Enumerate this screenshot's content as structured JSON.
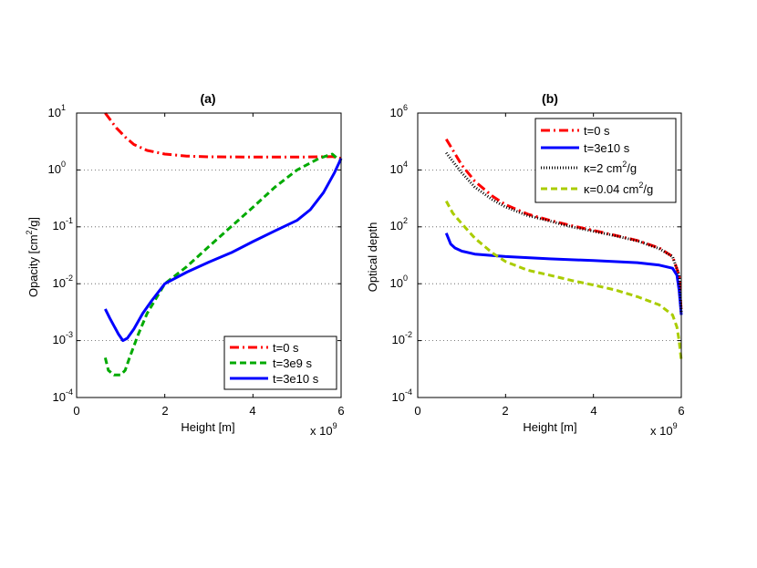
{
  "chart_data": [
    {
      "type": "line",
      "title": "(a)",
      "xlabel": "Height [m]",
      "ylabel": "Opacity [cm²/g]",
      "ylabel_main": "Opacity [cm",
      "ylabel_sup": "2",
      "ylabel_end": "/g]",
      "xlim": [
        0,
        6
      ],
      "ylim_log10": [
        -4,
        1
      ],
      "x_multiplier": {
        "base": "x 10",
        "exponent": "9"
      },
      "x_ticks": [
        "0",
        "2",
        "4",
        "6"
      ],
      "y_ticks": [
        {
          "base": "10",
          "exp": "1"
        },
        {
          "base": "10",
          "exp": "0"
        },
        {
          "base": "10",
          "exp": "-1"
        },
        {
          "base": "10",
          "exp": "-2"
        },
        {
          "base": "10",
          "exp": "-3"
        },
        {
          "base": "10",
          "exp": "-4"
        }
      ],
      "grid": "horizontal-dotted",
      "legend_position": "bottom-right",
      "series": [
        {
          "name": "t=0 s",
          "label": "t=0 s",
          "color": "#ff0000",
          "style": "dashdot",
          "x": [
            0.65,
            0.9,
            1.1,
            1.3,
            1.6,
            2.0,
            2.5,
            3.0,
            4.0,
            5.0,
            5.5,
            5.8,
            6.0
          ],
          "y": [
            10.0,
            5.5,
            3.8,
            2.8,
            2.2,
            1.9,
            1.75,
            1.7,
            1.68,
            1.68,
            1.7,
            1.72,
            1.6
          ]
        },
        {
          "name": "t=3e9 s",
          "label": "t=3e9 s",
          "color": "#00aa00",
          "style": "dashed",
          "x": [
            0.65,
            0.72,
            0.85,
            1.0,
            1.1,
            1.2,
            1.4,
            1.6,
            2.0,
            2.5,
            3.0,
            3.5,
            4.0,
            4.5,
            5.0,
            5.5,
            5.8,
            6.0
          ],
          "y": [
            0.0005,
            0.0003,
            0.00025,
            0.00025,
            0.0003,
            0.0005,
            0.0013,
            0.003,
            0.01,
            0.02,
            0.045,
            0.1,
            0.22,
            0.5,
            1.0,
            1.6,
            1.9,
            1.4
          ]
        },
        {
          "name": "t=3e10 s",
          "label": "t=3e10 s",
          "color": "#0000ff",
          "style": "solid",
          "x": [
            0.65,
            0.75,
            0.85,
            0.95,
            1.05,
            1.15,
            1.3,
            1.5,
            1.7,
            2.0,
            2.5,
            3.0,
            3.5,
            4.0,
            4.5,
            5.0,
            5.3,
            5.6,
            5.85,
            6.0
          ],
          "y": [
            0.0036,
            0.0025,
            0.0018,
            0.0013,
            0.001,
            0.0011,
            0.0016,
            0.003,
            0.005,
            0.01,
            0.016,
            0.024,
            0.035,
            0.055,
            0.085,
            0.13,
            0.2,
            0.4,
            0.9,
            1.6
          ]
        }
      ]
    },
    {
      "type": "line",
      "title": "(b)",
      "xlabel": "Height [m]",
      "ylabel": "Optical depth",
      "xlim": [
        0,
        6
      ],
      "ylim_log10": [
        -4,
        6
      ],
      "x_multiplier": {
        "base": "x 10",
        "exponent": "9"
      },
      "x_ticks": [
        "0",
        "2",
        "4",
        "6"
      ],
      "y_ticks": [
        {
          "base": "10",
          "exp": "6"
        },
        {
          "base": "10",
          "exp": "4"
        },
        {
          "base": "10",
          "exp": "2"
        },
        {
          "base": "10",
          "exp": "0"
        },
        {
          "base": "10",
          "exp": "-2"
        },
        {
          "base": "10",
          "exp": "-4"
        }
      ],
      "grid": "horizontal-dotted",
      "legend_position": "top-right",
      "series": [
        {
          "name": "t=0 s",
          "label": "t=0 s",
          "color": "#ff0000",
          "style": "dashdot",
          "x": [
            0.65,
            0.8,
            1.0,
            1.3,
            1.7,
            2.0,
            2.5,
            3.0,
            3.5,
            4.0,
            4.5,
            5.0,
            5.5,
            5.8,
            5.95,
            6.0
          ],
          "y": [
            120000,
            50000,
            15000,
            4000,
            1200,
            600,
            280,
            170,
            110,
            75,
            50,
            33,
            18,
            9,
            2,
            0.1
          ]
        },
        {
          "name": "t=3e10 s",
          "label": "t=3e10 s",
          "color": "#0000ff",
          "style": "solid",
          "x": [
            0.65,
            0.75,
            0.85,
            1.0,
            1.3,
            2.0,
            3.0,
            4.0,
            5.0,
            5.5,
            5.8,
            5.9,
            5.95,
            6.0
          ],
          "y": [
            60,
            25,
            18,
            14,
            11,
            9,
            7.5,
            6.5,
            5.5,
            4.5,
            3.5,
            2,
            0.6,
            0.08
          ]
        },
        {
          "name": "κ=2 cm²/g",
          "label_main": "κ=2 cm",
          "label_sup": "2",
          "label_end": "/g",
          "color": "#000000",
          "style": "dotted",
          "x": [
            0.65,
            0.8,
            1.0,
            1.3,
            1.7,
            2.0,
            2.5,
            3.0,
            3.5,
            4.0,
            4.5,
            5.0,
            5.5,
            5.8,
            5.95,
            6.0
          ],
          "y": [
            40000,
            20000,
            8000,
            2500,
            900,
            500,
            250,
            160,
            100,
            70,
            48,
            32,
            17,
            9,
            2,
            0.1
          ]
        },
        {
          "name": "κ=0.04 cm²/g",
          "label_main": "κ=0.04 cm",
          "label_sup": "2",
          "label_end": "/g",
          "color": "#aacc00",
          "style": "dashed",
          "x": [
            0.65,
            0.8,
            1.0,
            1.3,
            1.7,
            2.0,
            2.5,
            3.0,
            3.5,
            4.0,
            4.5,
            5.0,
            5.5,
            5.8,
            5.9,
            5.95,
            6.0
          ],
          "y": [
            800,
            300,
            130,
            40,
            12,
            6,
            3,
            2,
            1.3,
            0.9,
            0.6,
            0.35,
            0.18,
            0.08,
            0.03,
            0.01,
            0.002
          ]
        }
      ]
    }
  ]
}
